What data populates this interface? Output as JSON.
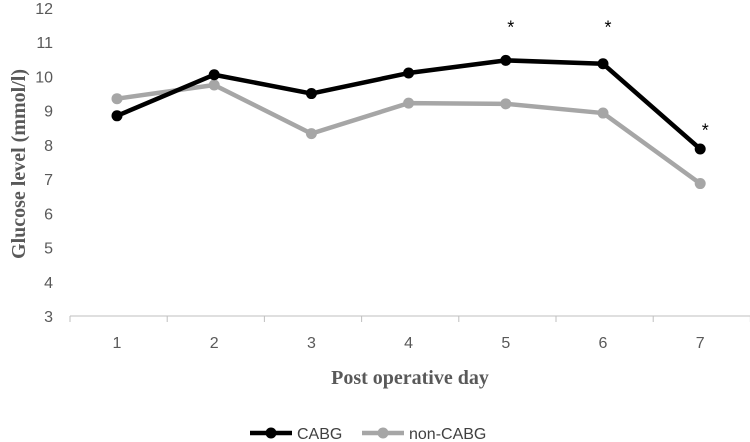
{
  "chart_data": {
    "type": "line",
    "x": [
      1,
      2,
      3,
      4,
      5,
      6,
      7
    ],
    "series": [
      {
        "name": "CABG",
        "values": [
          8.85,
          10.05,
          9.5,
          10.1,
          10.47,
          10.37,
          7.88
        ],
        "color": "#000000"
      },
      {
        "name": "non-CABG",
        "values": [
          9.35,
          9.75,
          8.33,
          9.22,
          9.2,
          8.93,
          6.87
        ],
        "color": "#a6a6a6"
      }
    ],
    "xlabel": "Post operative day",
    "ylabel": "Glucose level (mmol/l)",
    "ylim": [
      3,
      12
    ],
    "yticks": [
      3,
      4,
      5,
      6,
      7,
      8,
      9,
      10,
      11,
      12
    ],
    "xticks": [
      "1",
      "2",
      "3",
      "4",
      "5",
      "6",
      "7"
    ],
    "annotations": [
      {
        "x": 5,
        "y": 11.6,
        "text": "*"
      },
      {
        "x": 6,
        "y": 11.6,
        "text": "*"
      },
      {
        "x": 7,
        "y": 8.6,
        "text": "*"
      }
    ],
    "grid": false,
    "legend_position": "bottom-center"
  }
}
